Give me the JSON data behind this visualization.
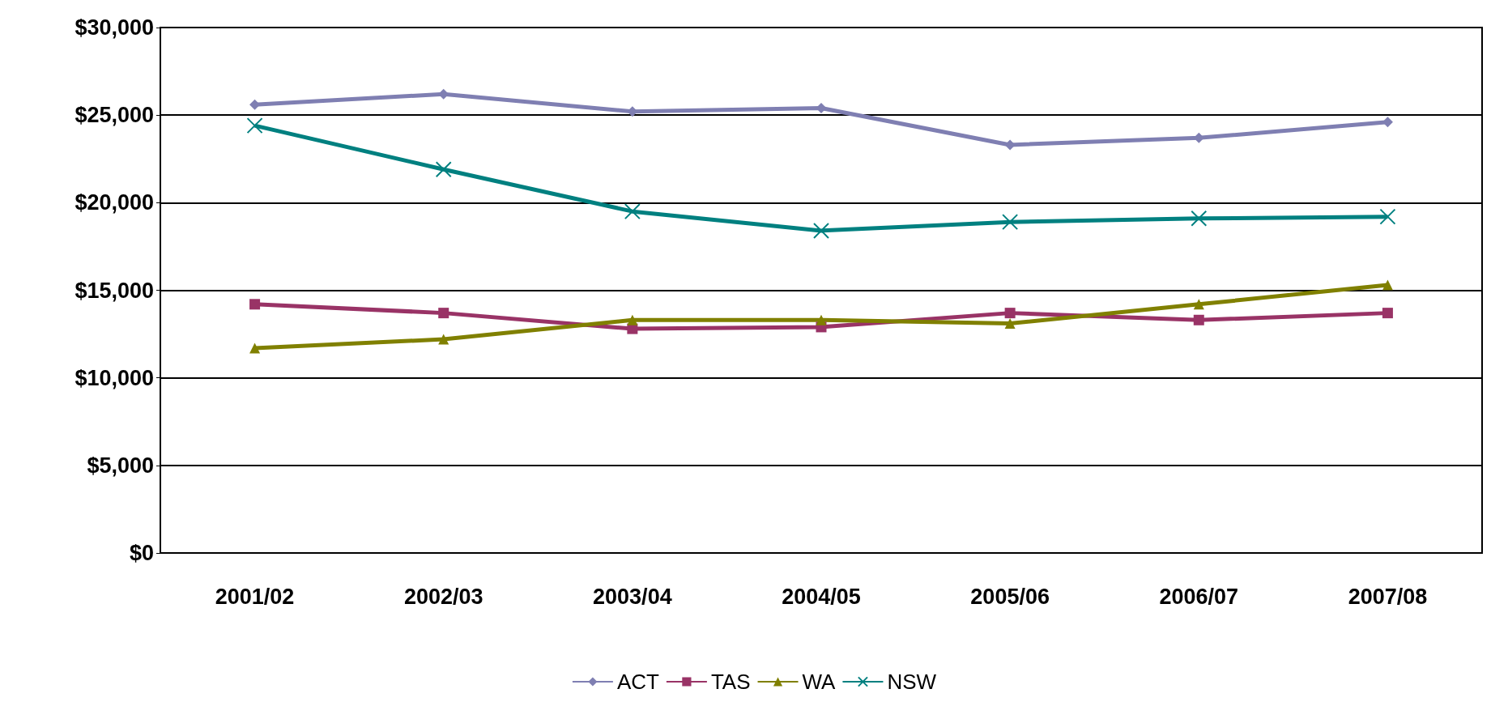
{
  "chart_data": {
    "type": "line",
    "categories": [
      "2001/02",
      "2002/03",
      "2003/04",
      "2004/05",
      "2005/06",
      "2006/07",
      "2007/08"
    ],
    "series": [
      {
        "name": "ACT",
        "color": "#7f7fb2",
        "marker": "diamond",
        "values": [
          25600,
          26200,
          25200,
          25400,
          23300,
          23700,
          24600
        ]
      },
      {
        "name": "TAS",
        "color": "#993366",
        "marker": "square",
        "values": [
          14200,
          13700,
          12800,
          12900,
          13700,
          13300,
          13700
        ]
      },
      {
        "name": "WA",
        "color": "#808000",
        "marker": "triangle",
        "values": [
          11700,
          12200,
          13300,
          13300,
          13100,
          14200,
          15300
        ]
      },
      {
        "name": "NSW",
        "color": "#008080",
        "marker": "cross",
        "values": [
          24400,
          21900,
          19500,
          18400,
          18900,
          19100,
          19200
        ]
      }
    ],
    "ylim": [
      0,
      30000
    ],
    "yticks": [
      {
        "value": 0,
        "label": "$0"
      },
      {
        "value": 5000,
        "label": "$5,000"
      },
      {
        "value": 10000,
        "label": "$10,000"
      },
      {
        "value": 15000,
        "label": "$15,000"
      },
      {
        "value": 20000,
        "label": "$20,000"
      },
      {
        "value": 25000,
        "label": "$25,000"
      },
      {
        "value": 30000,
        "label": "$30,000"
      }
    ],
    "grid": "y",
    "legend": "bottom"
  }
}
